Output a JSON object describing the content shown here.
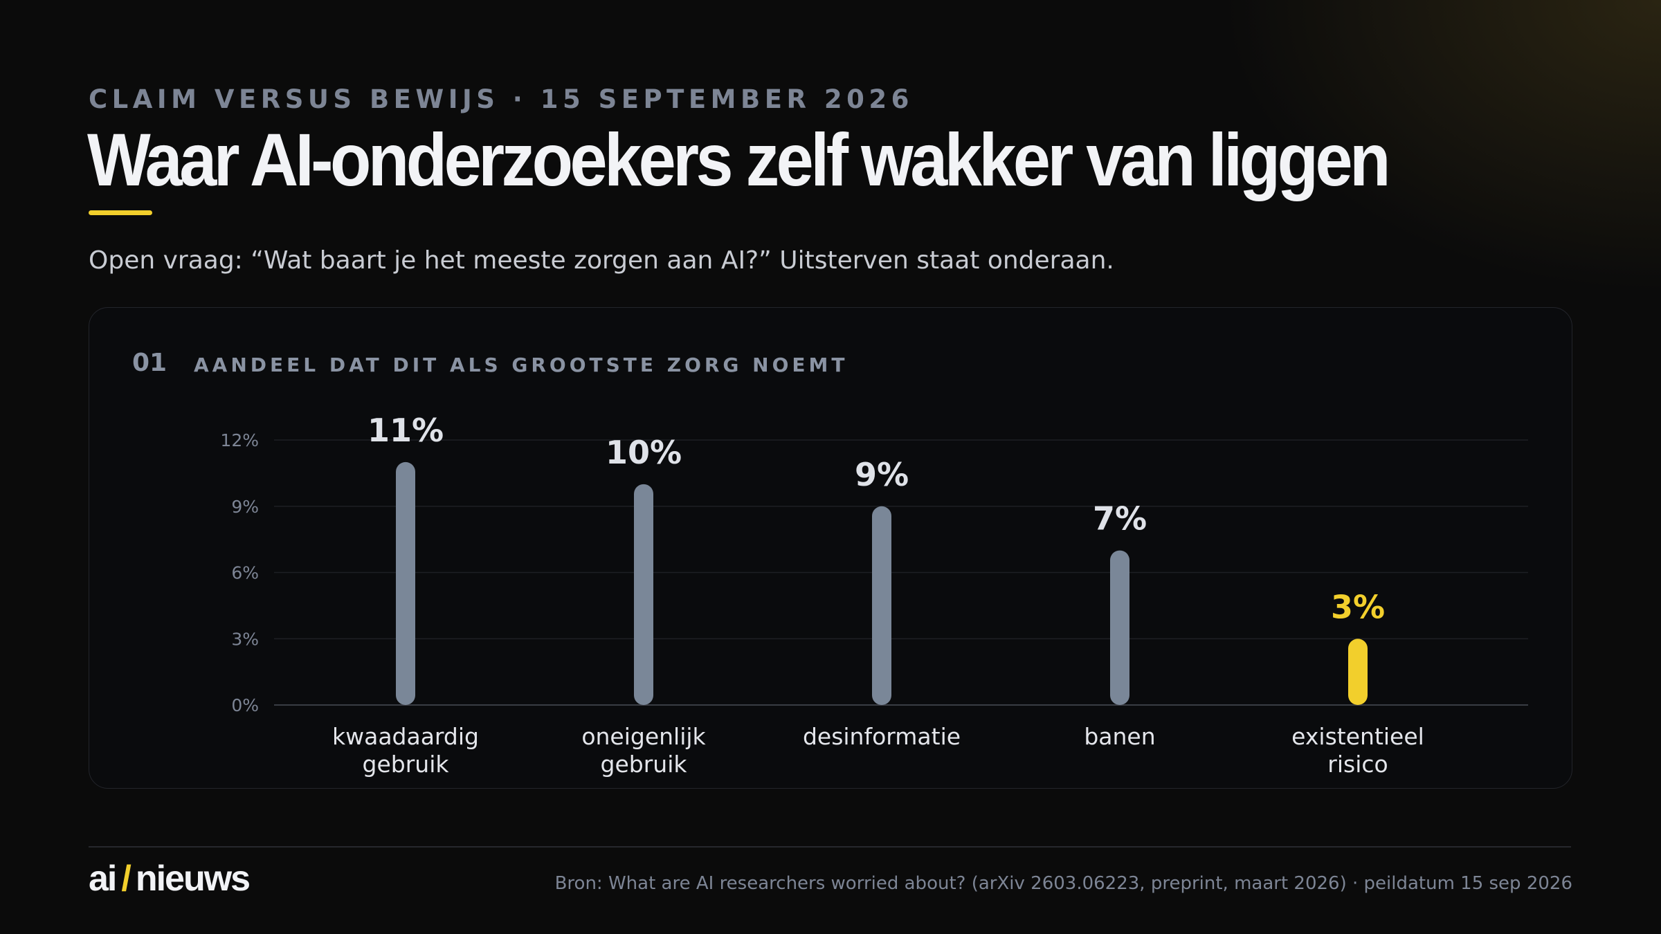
{
  "header": {
    "kicker": "CLAIM VERSUS BEWIJS · 15 SEPTEMBER 2026",
    "title": "Waar AI-onderzoekers zelf wakker van liggen",
    "subtitle": "Open vraag: “Wat baart je het meeste zorgen aan AI?” Uitsterven staat onderaan."
  },
  "panel": {
    "number": "01",
    "label": "AANDEEL DAT DIT ALS GROOTSTE ZORG NOEMT"
  },
  "colors": {
    "bar_default": "#7a8798",
    "bar_highlight": "#f2cf2c",
    "accent": "#f2cf2c"
  },
  "chart_data": {
    "type": "bar",
    "categories": [
      [
        "kwaadaardig",
        "gebruik"
      ],
      [
        "oneigenlijk",
        "gebruik"
      ],
      [
        "desinformatie"
      ],
      [
        "banen"
      ],
      [
        "existentieel",
        "risico"
      ]
    ],
    "values": [
      11,
      10,
      9,
      7,
      3
    ],
    "value_labels": [
      "11%",
      "10%",
      "9%",
      "7%",
      "3%"
    ],
    "highlight_index": 4,
    "yticks": [
      "0%",
      "3%",
      "6%",
      "9%",
      "12%"
    ],
    "ylim": [
      0,
      12
    ],
    "grid": true
  },
  "footer": {
    "logo_left": "ai",
    "logo_slash": "/",
    "logo_right": "nieuws",
    "source": "Bron: What are AI researchers worried about? (arXiv 2603.06223, preprint, maart 2026) · peildatum 15 sep 2026"
  }
}
